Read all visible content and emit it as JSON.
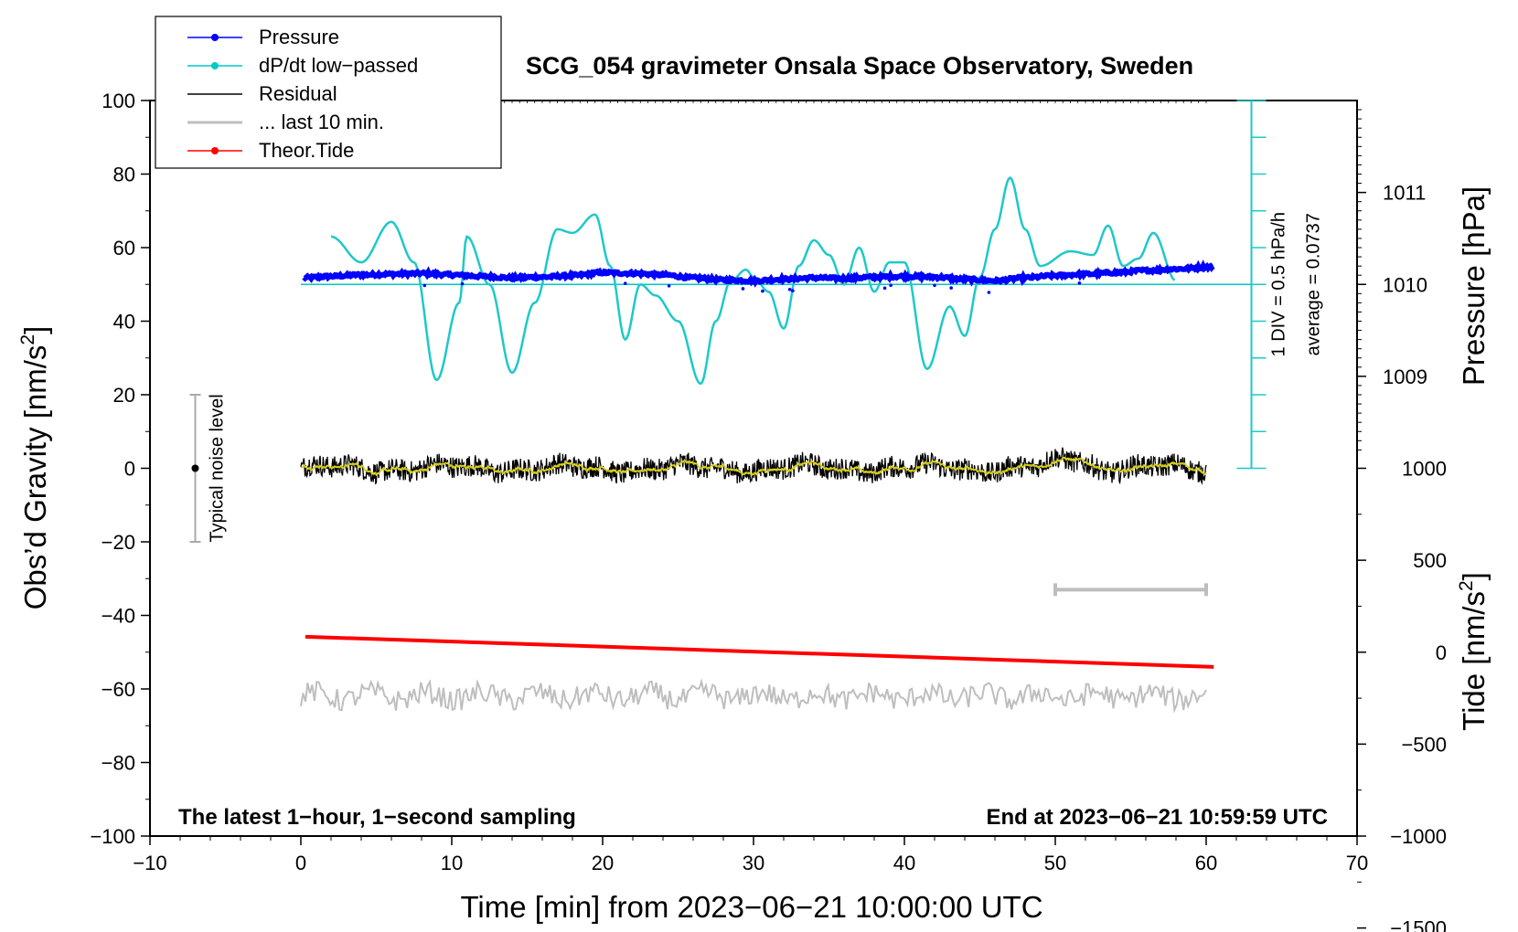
{
  "chart_data": {
    "type": "line",
    "title": "SCG_054 gravimeter Onsala Space Observatory, Sweden",
    "xlabel": "Time [min] from 2023−06−21 10:00:00 UTC",
    "ylabel_left_main": "Obs’d Gravity [nm/s",
    "ylabel_left_sup": "2",
    "ylabel_left_end": "]",
    "ylabel_right_top": "Pressure [hPa]",
    "ylabel_right_bottom_main": "Tide [nm/s",
    "ylabel_right_bottom_sup": "2",
    "ylabel_right_bottom_end": "]",
    "xlim": [
      -10,
      70
    ],
    "ylim": [
      -100,
      100
    ],
    "x_ticks": [
      -10,
      0,
      10,
      20,
      30,
      40,
      50,
      60,
      70
    ],
    "x_tick_labels": [
      "−10",
      "0",
      "10",
      "20",
      "30",
      "40",
      "50",
      "60",
      "70"
    ],
    "y_ticks": [
      -100,
      -80,
      -60,
      -40,
      -20,
      0,
      20,
      40,
      60,
      80,
      100
    ],
    "y_tick_labels": [
      "−100",
      "−80",
      "−60",
      "−40",
      "−20",
      "0",
      "20",
      "40",
      "60",
      "80",
      "100"
    ],
    "pressure_axis": {
      "ticks": [
        1009,
        1010,
        1011
      ],
      "tick_labels": [
        "1009",
        "1010",
        "1011"
      ],
      "gravity_at_1010": 50,
      "gravity_per_hpa": 25
    },
    "tide_axis": {
      "ticks": [
        -1500,
        -1000,
        -500,
        0,
        500,
        1000
      ],
      "tick_labels": [
        "−1500",
        "−1000",
        "−500",
        "0",
        "500",
        "1000"
      ],
      "gravity_at_zero": -50,
      "gravity_per_unit": 0.05
    },
    "dpdt_scale": {
      "x": 63,
      "y0": 0,
      "y1": 100,
      "div": 10,
      "label": "1 DIV = 0.5 hPa/h",
      "average": "average = 0.0737"
    },
    "noise_bar": {
      "x": -7,
      "low": -20,
      "high": 20,
      "label": "Typical noise level"
    },
    "last10_bar": {
      "x0": 50,
      "x1": 60,
      "y": -33
    },
    "annotations": {
      "bottom_left": "The latest 1−hour, 1−second sampling",
      "bottom_right": "End at 2023−06−21 10:59:59 UTC"
    },
    "legend": [
      {
        "name": "Pressure",
        "color": "#0000ff",
        "marker": true
      },
      {
        "name": "dP/dt low−passed",
        "color": "#00c8c8",
        "marker": true
      },
      {
        "name": "Residual",
        "color": "#000000",
        "marker": false
      },
      {
        "name": "... last 10 min.",
        "color": "#bebebe",
        "marker": false
      },
      {
        "name": "Theor.Tide",
        "color": "#ff0000",
        "marker": true
      }
    ],
    "series": [
      {
        "name": "Pressure",
        "color": "#0000ff",
        "x": [
          0.2,
          2,
          4,
          6,
          8,
          10,
          12,
          14,
          16,
          18,
          20,
          22,
          24,
          26,
          28,
          30,
          32,
          34,
          36,
          38,
          40,
          42,
          44,
          46,
          48,
          50,
          52,
          54,
          56,
          58,
          60.5
        ],
        "y": [
          51.8,
          52.2,
          52.6,
          52.8,
          53,
          52.6,
          52.2,
          51.8,
          52,
          52.4,
          53.2,
          53,
          52.6,
          51.8,
          51.2,
          51,
          51.4,
          51.8,
          51.6,
          52,
          52.2,
          52,
          51.4,
          51,
          51.8,
          52.4,
          52.8,
          53.2,
          53.8,
          54.2,
          54.8
        ]
      },
      {
        "name": "dP/dt low-passed",
        "color": "#00c8c8",
        "baseline": 50,
        "x": [
          2,
          4,
          6,
          7.5,
          9,
          10.5,
          11,
          12.5,
          14,
          15.5,
          17,
          18,
          19.5,
          20.5,
          21.5,
          22.5,
          23.5,
          25,
          26.5,
          27.5,
          28.5,
          29.5,
          30,
          31,
          32,
          33,
          34,
          35,
          36,
          37,
          38,
          39,
          40,
          41.5,
          43,
          44,
          45,
          46,
          47,
          48,
          49,
          51,
          52.5,
          53.5,
          54.5,
          55.5,
          56.5,
          58
        ],
        "y": [
          63,
          56,
          67,
          56,
          24,
          45,
          63,
          50,
          26,
          45,
          65,
          64,
          69,
          55,
          35,
          50,
          47,
          40,
          23,
          40,
          51,
          54,
          52,
          48,
          38,
          55,
          62,
          58,
          50,
          60,
          48,
          56,
          56,
          27,
          44,
          36,
          52,
          65,
          79,
          65,
          55,
          59,
          58,
          66,
          55,
          57,
          64,
          51
        ]
      },
      {
        "name": "Residual",
        "color": "#000000",
        "x": [
          0,
          60
        ]
      },
      {
        "name": "... last 10 min.",
        "color": "#bebebe",
        "x": [
          0,
          60
        ]
      },
      {
        "name": "Theor.Tide",
        "color": "#ff0000",
        "x": [
          0.3,
          60.5
        ],
        "y": [
          -45.8,
          -54
        ]
      }
    ]
  }
}
